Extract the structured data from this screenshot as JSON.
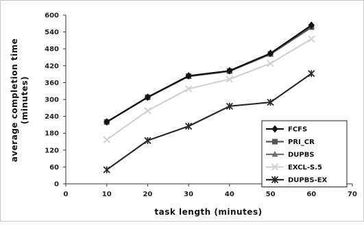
{
  "chart_data": {
    "type": "line",
    "title": "",
    "xlabel": "task length (minutes)",
    "ylabel": "average completion time (minutes)",
    "ylabel_lines": [
      "average completion time",
      "(minutes)"
    ],
    "xlim": [
      0,
      70
    ],
    "ylim": [
      0,
      600
    ],
    "xticks": [
      0,
      10,
      20,
      30,
      40,
      50,
      60,
      70
    ],
    "yticks": [
      0,
      60,
      120,
      180,
      240,
      300,
      360,
      420,
      480,
      540,
      600
    ],
    "grid": false,
    "legend_position": "bottom-right",
    "x": [
      10,
      20,
      30,
      40,
      50,
      60
    ],
    "series": [
      {
        "name": "FCFS",
        "marker": "diamond",
        "color": "#111111",
        "values": [
          220,
          308,
          384,
          402,
          464,
          564
        ]
      },
      {
        "name": "PRI_CR",
        "marker": "square",
        "color": "#555555",
        "values": [
          220,
          308,
          383,
          401,
          462,
          558
        ]
      },
      {
        "name": "DUPBS",
        "marker": "triangle",
        "color": "#6e6e6e",
        "values": [
          220,
          307,
          382,
          400,
          461,
          556
        ]
      },
      {
        "name": "EXCL-S.5",
        "marker": "x",
        "color": "#d2d2d2",
        "values": [
          157,
          260,
          338,
          372,
          428,
          515
        ]
      },
      {
        "name": "DUPBS-EX",
        "marker": "star",
        "color": "#2a2a2a",
        "values": [
          50,
          154,
          205,
          276,
          290,
          392
        ]
      }
    ]
  }
}
